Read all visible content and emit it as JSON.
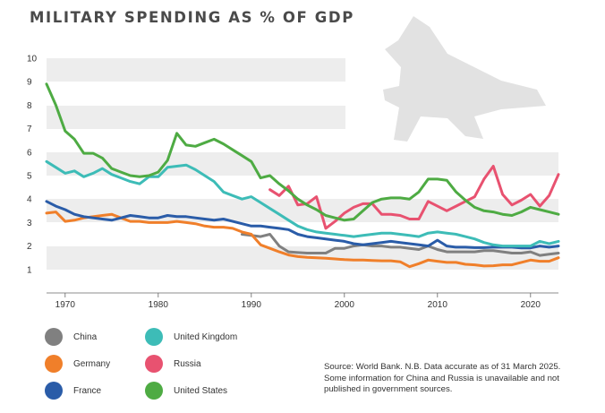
{
  "title": "MILITARY SPENDING AS % OF GDP",
  "source_note": "Source: World Bank. N.B. Data accurate as of 31 March 2025. Some information for China and Russia is unavailable and not published in government sources.",
  "chart_data": {
    "type": "line",
    "title": "MILITARY SPENDING AS % OF GDP",
    "xlabel": "",
    "ylabel": "",
    "xlim": [
      1968,
      2023
    ],
    "ylim": [
      0,
      10
    ],
    "x_ticks": [
      1970,
      1980,
      1990,
      2000,
      2010,
      2020
    ],
    "y_ticks": [
      1,
      2,
      3,
      4,
      5,
      6,
      7,
      8,
      9,
      10
    ],
    "grid": "alternating horizontal bands",
    "legend_position": "bottom-left",
    "series": [
      {
        "name": "China",
        "color": "#808080",
        "x": [
          1989,
          1990,
          1991,
          1992,
          1993,
          1994,
          1995,
          1996,
          1997,
          1998,
          1999,
          2000,
          2001,
          2002,
          2003,
          2004,
          2005,
          2006,
          2007,
          2008,
          2009,
          2010,
          2011,
          2012,
          2013,
          2014,
          2015,
          2016,
          2017,
          2018,
          2019,
          2020,
          2021,
          2022,
          2023
        ],
        "y": [
          2.5,
          2.45,
          2.4,
          2.5,
          2.0,
          1.75,
          1.72,
          1.7,
          1.7,
          1.7,
          1.9,
          1.9,
          2.0,
          2.05,
          2.0,
          2.0,
          1.95,
          1.95,
          1.9,
          1.85,
          2.0,
          1.85,
          1.75,
          1.75,
          1.75,
          1.75,
          1.8,
          1.8,
          1.75,
          1.7,
          1.7,
          1.75,
          1.6,
          1.65,
          1.7
        ]
      },
      {
        "name": "Germany",
        "color": "#f07f2a",
        "x": [
          1968,
          1969,
          1970,
          1971,
          1972,
          1973,
          1974,
          1975,
          1976,
          1977,
          1978,
          1979,
          1980,
          1981,
          1982,
          1983,
          1984,
          1985,
          1986,
          1987,
          1988,
          1989,
          1990,
          1991,
          1992,
          1993,
          1994,
          1995,
          1996,
          1997,
          1998,
          1999,
          2000,
          2001,
          2002,
          2003,
          2004,
          2005,
          2006,
          2007,
          2008,
          2009,
          2010,
          2011,
          2012,
          2013,
          2014,
          2015,
          2016,
          2017,
          2018,
          2019,
          2020,
          2021,
          2022,
          2023
        ],
        "y": [
          3.4,
          3.45,
          3.05,
          3.1,
          3.2,
          3.25,
          3.3,
          3.35,
          3.2,
          3.05,
          3.05,
          3.0,
          3.0,
          3.0,
          3.05,
          3.0,
          2.95,
          2.85,
          2.8,
          2.8,
          2.75,
          2.6,
          2.5,
          2.05,
          1.9,
          1.75,
          1.62,
          1.55,
          1.52,
          1.5,
          1.48,
          1.45,
          1.42,
          1.4,
          1.4,
          1.38,
          1.37,
          1.37,
          1.33,
          1.12,
          1.25,
          1.4,
          1.35,
          1.3,
          1.3,
          1.22,
          1.2,
          1.15,
          1.16,
          1.2,
          1.2,
          1.3,
          1.4,
          1.35,
          1.35,
          1.5
        ]
      },
      {
        "name": "France",
        "color": "#2a5ca8",
        "x": [
          1968,
          1969,
          1970,
          1971,
          1972,
          1973,
          1974,
          1975,
          1976,
          1977,
          1978,
          1979,
          1980,
          1981,
          1982,
          1983,
          1984,
          1985,
          1986,
          1987,
          1988,
          1989,
          1990,
          1991,
          1992,
          1993,
          1994,
          1995,
          1996,
          1997,
          1998,
          1999,
          2000,
          2001,
          2002,
          2003,
          2004,
          2005,
          2006,
          2007,
          2008,
          2009,
          2010,
          2011,
          2012,
          2013,
          2014,
          2015,
          2016,
          2017,
          2018,
          2019,
          2020,
          2021,
          2022,
          2023
        ],
        "y": [
          3.9,
          3.7,
          3.55,
          3.35,
          3.25,
          3.2,
          3.15,
          3.1,
          3.2,
          3.3,
          3.25,
          3.2,
          3.2,
          3.3,
          3.25,
          3.25,
          3.2,
          3.15,
          3.1,
          3.15,
          3.05,
          2.95,
          2.85,
          2.85,
          2.8,
          2.75,
          2.7,
          2.5,
          2.4,
          2.35,
          2.3,
          2.25,
          2.2,
          2.1,
          2.05,
          2.1,
          2.15,
          2.2,
          2.15,
          2.1,
          2.05,
          2.0,
          2.25,
          2.0,
          1.95,
          1.95,
          1.93,
          1.93,
          1.95,
          1.95,
          1.95,
          1.92,
          1.92,
          2.0,
          1.95,
          2.0
        ]
      },
      {
        "name": "United Kingdom",
        "color": "#3dbcb7",
        "x": [
          1968,
          1969,
          1970,
          1971,
          1972,
          1973,
          1974,
          1975,
          1976,
          1977,
          1978,
          1979,
          1980,
          1981,
          1982,
          1983,
          1984,
          1985,
          1986,
          1987,
          1988,
          1989,
          1990,
          1991,
          1992,
          1993,
          1994,
          1995,
          1996,
          1997,
          1998,
          1999,
          2000,
          2001,
          2002,
          2003,
          2004,
          2005,
          2006,
          2007,
          2008,
          2009,
          2010,
          2011,
          2012,
          2013,
          2014,
          2015,
          2016,
          2017,
          2018,
          2019,
          2020,
          2021,
          2022,
          2023
        ],
        "y": [
          5.6,
          5.35,
          5.1,
          5.2,
          4.95,
          5.1,
          5.3,
          5.05,
          4.9,
          4.75,
          4.65,
          4.95,
          4.95,
          5.35,
          5.4,
          5.45,
          5.25,
          5.0,
          4.75,
          4.3,
          4.15,
          4.0,
          4.1,
          3.85,
          3.6,
          3.35,
          3.1,
          2.85,
          2.7,
          2.6,
          2.55,
          2.5,
          2.45,
          2.4,
          2.45,
          2.5,
          2.55,
          2.55,
          2.5,
          2.45,
          2.4,
          2.55,
          2.6,
          2.55,
          2.5,
          2.4,
          2.3,
          2.15,
          2.05,
          2.0,
          2.0,
          2.0,
          2.0,
          2.2,
          2.1,
          2.2
        ]
      },
      {
        "name": "Russia",
        "color": "#e85270",
        "x": [
          1992,
          1993,
          1994,
          1995,
          1996,
          1997,
          1998,
          1999,
          2000,
          2001,
          2002,
          2003,
          2004,
          2005,
          2006,
          2007,
          2008,
          2009,
          2010,
          2011,
          2012,
          2013,
          2014,
          2015,
          2016,
          2017,
          2018,
          2019,
          2020,
          2021,
          2022,
          2023
        ],
        "y": [
          4.4,
          4.15,
          4.55,
          3.75,
          3.8,
          4.1,
          2.75,
          3.05,
          3.4,
          3.65,
          3.8,
          3.8,
          3.35,
          3.35,
          3.3,
          3.15,
          3.15,
          3.9,
          3.7,
          3.5,
          3.7,
          3.9,
          4.1,
          4.85,
          5.4,
          4.2,
          3.75,
          3.95,
          4.2,
          3.7,
          4.15,
          5.05
        ]
      },
      {
        "name": "United States",
        "color": "#4eab43",
        "x": [
          1968,
          1969,
          1970,
          1971,
          1972,
          1973,
          1974,
          1975,
          1976,
          1977,
          1978,
          1979,
          1980,
          1981,
          1982,
          1983,
          1984,
          1985,
          1986,
          1987,
          1988,
          1989,
          1990,
          1991,
          1992,
          1993,
          1994,
          1995,
          1996,
          1997,
          1998,
          1999,
          2000,
          2001,
          2002,
          2003,
          2004,
          2005,
          2006,
          2007,
          2008,
          2009,
          2010,
          2011,
          2012,
          2013,
          2014,
          2015,
          2016,
          2017,
          2018,
          2019,
          2020,
          2021,
          2022,
          2023
        ],
        "y": [
          8.9,
          8.0,
          6.9,
          6.55,
          5.95,
          5.95,
          5.75,
          5.3,
          5.15,
          5.0,
          4.95,
          5.0,
          5.15,
          5.65,
          6.8,
          6.3,
          6.25,
          6.4,
          6.55,
          6.35,
          6.1,
          5.85,
          5.6,
          4.9,
          5.0,
          4.65,
          4.35,
          4.0,
          3.75,
          3.55,
          3.3,
          3.2,
          3.1,
          3.15,
          3.5,
          3.85,
          4.0,
          4.05,
          4.05,
          4.0,
          4.3,
          4.85,
          4.85,
          4.8,
          4.3,
          3.95,
          3.65,
          3.5,
          3.45,
          3.35,
          3.3,
          3.45,
          3.65,
          3.55,
          3.45,
          3.35
        ]
      }
    ]
  }
}
